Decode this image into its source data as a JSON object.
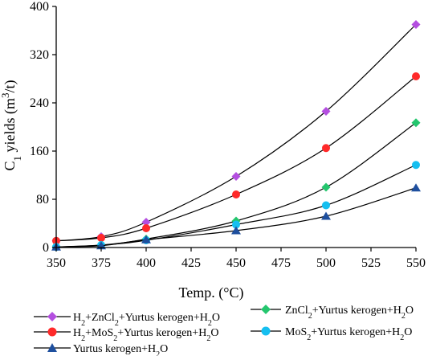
{
  "chart_data": {
    "type": "line",
    "xlabel": "Temp. (°C)",
    "ylabel": "C1 yields (m3/t)",
    "x": [
      350,
      375,
      400,
      450,
      500,
      550
    ],
    "xticks": [
      "350",
      "375",
      "400",
      "425",
      "450",
      "475",
      "500",
      "525",
      "550"
    ],
    "xlim": [
      350,
      550
    ],
    "ylim": [
      0,
      400
    ],
    "yticks": [
      "0",
      "80",
      "160",
      "240",
      "320",
      "400"
    ],
    "grid": false,
    "legend_position": "bottom",
    "series": [
      {
        "name": "H2+ZnCl2+Yurtus kerogen+H2O",
        "color": "#b44fe0",
        "marker": "diamond",
        "values": [
          11,
          18,
          42,
          118,
          226,
          370
        ]
      },
      {
        "name": "H2+MoS2+Yurtus kerogen+H2O",
        "color": "#ff2a2a",
        "marker": "circle",
        "values": [
          11,
          16,
          32,
          88,
          165,
          284
        ]
      },
      {
        "name": "ZnCl2+Yurtus kerogen+H2O",
        "color": "#24c66e",
        "marker": "diamond",
        "values": [
          1,
          4,
          14,
          44,
          100,
          207
        ]
      },
      {
        "name": "MoS2+Yurtus kerogen+H2O",
        "color": "#16bff0",
        "marker": "circle",
        "values": [
          1,
          4,
          12,
          38,
          70,
          137
        ]
      },
      {
        "name": "Yurtus kerogen+H2O",
        "color": "#1e4f9e",
        "marker": "triangle",
        "values": [
          1,
          3,
          13,
          28,
          52,
          99
        ]
      }
    ]
  }
}
